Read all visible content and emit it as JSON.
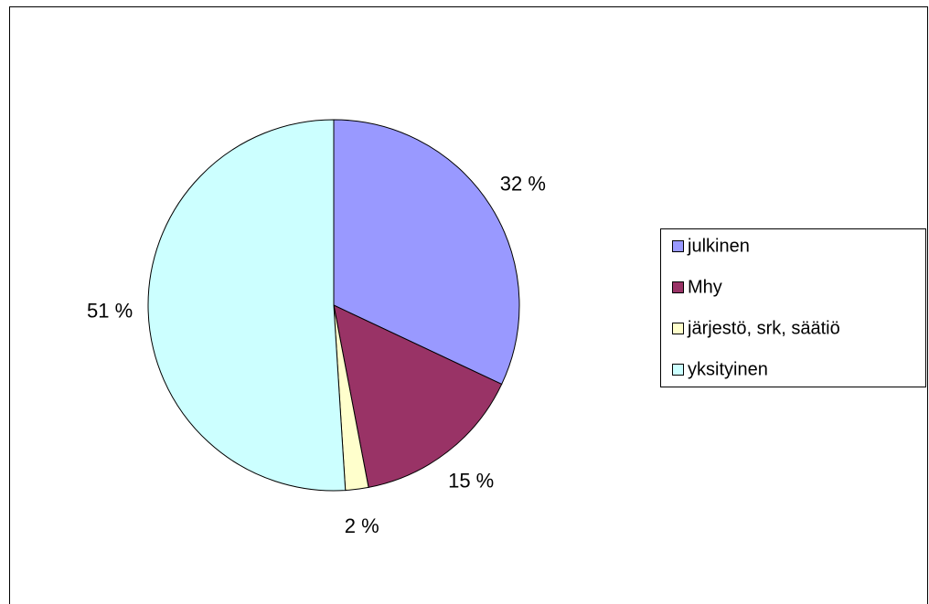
{
  "chart_data": {
    "type": "pie",
    "categories": [
      "julkinen",
      "Mhy",
      "järjestö, srk, säätiö",
      "yksityinen"
    ],
    "values": [
      32,
      15,
      2,
      51
    ],
    "value_labels": [
      "32 %",
      "15 %",
      "2 %",
      "51 %"
    ],
    "colors": [
      "#9999ff",
      "#993366",
      "#ffffcc",
      "#ccffff"
    ],
    "legend": "right"
  }
}
